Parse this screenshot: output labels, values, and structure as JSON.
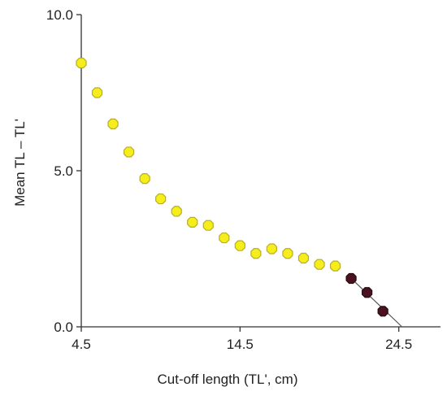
{
  "chart_data": {
    "type": "scatter",
    "title": "",
    "xlabel": "Cut-off length (TL', cm)",
    "ylabel": "Mean TL – TL'",
    "xlim": [
      4.5,
      26.0
    ],
    "ylim": [
      0.0,
      10.0
    ],
    "x_ticks": [
      4.5,
      14.5,
      24.5
    ],
    "x_tick_labels": [
      "4.5",
      "14.5",
      "24.5"
    ],
    "y_ticks": [
      0.0,
      5.0,
      10.0
    ],
    "y_tick_labels": [
      "0.0",
      "5.0",
      "10.0"
    ],
    "grid": false,
    "series": [
      {
        "color": "#f5ee1a",
        "stroke": "#b8ac2a",
        "points": [
          {
            "x": 4.5,
            "y": 8.45
          },
          {
            "x": 5.5,
            "y": 7.5
          },
          {
            "x": 6.5,
            "y": 6.5
          },
          {
            "x": 7.5,
            "y": 5.6
          },
          {
            "x": 8.5,
            "y": 4.75
          },
          {
            "x": 9.5,
            "y": 4.1
          },
          {
            "x": 10.5,
            "y": 3.7
          },
          {
            "x": 11.5,
            "y": 3.35
          },
          {
            "x": 12.5,
            "y": 3.25
          },
          {
            "x": 13.5,
            "y": 2.85
          },
          {
            "x": 14.5,
            "y": 2.6
          },
          {
            "x": 15.5,
            "y": 2.35
          },
          {
            "x": 16.5,
            "y": 2.5
          },
          {
            "x": 17.5,
            "y": 2.35
          },
          {
            "x": 18.5,
            "y": 2.2
          },
          {
            "x": 19.5,
            "y": 2.0
          },
          {
            "x": 20.5,
            "y": 1.95
          }
        ]
      },
      {
        "color": "#4a1220",
        "stroke": "#2a0a10",
        "points": [
          {
            "x": 21.5,
            "y": 1.55
          },
          {
            "x": 22.5,
            "y": 1.1
          },
          {
            "x": 23.5,
            "y": 0.5
          }
        ]
      }
    ],
    "trend_line": {
      "color": "#555555",
      "from": {
        "x": 21.3,
        "y": 1.65
      },
      "to": {
        "x": 24.7,
        "y": 0.0
      }
    }
  }
}
